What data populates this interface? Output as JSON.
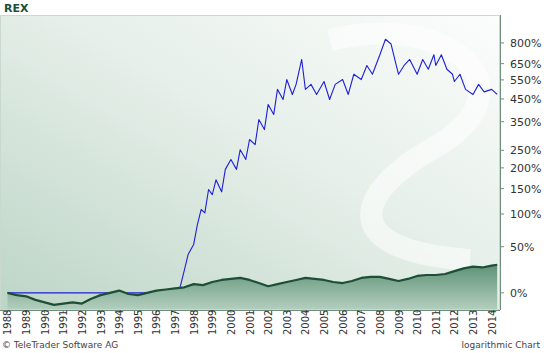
{
  "chart_data": {
    "type": "line",
    "title": "REX",
    "annotations": [
      "© TeleTrader Software AG",
      "logarithmic Chart"
    ],
    "log": "y",
    "grid": false,
    "xlim": [
      1987.6,
      2014.45
    ],
    "xticks": [
      1988,
      1989,
      1990,
      1991,
      1992,
      1993,
      1994,
      1995,
      1996,
      1997,
      1998,
      1999,
      2000,
      2001,
      2002,
      2003,
      2004,
      2005,
      2006,
      2007,
      2008,
      2009,
      2010,
      2011,
      2012,
      2013,
      2014
    ],
    "ylim": [
      -14,
      1050
    ],
    "yticks": [
      {
        "value": 0,
        "label": "0%"
      },
      {
        "value": 50,
        "label": "50%"
      },
      {
        "value": 100,
        "label": "100%"
      },
      {
        "value": 150,
        "label": "150%"
      },
      {
        "value": 200,
        "label": "200%"
      },
      {
        "value": 250,
        "label": "250%"
      },
      {
        "value": 350,
        "label": "350%"
      },
      {
        "value": 450,
        "label": "450%"
      },
      {
        "value": 550,
        "label": "550%"
      },
      {
        "value": 650,
        "label": "650%"
      },
      {
        "value": 800,
        "label": "800%"
      }
    ],
    "series": [
      {
        "type": "line",
        "color": "#1f1fd6",
        "x": [
          1988.0,
          1996.7,
          1996.8,
          1997.0,
          1997.3,
          1997.5,
          1997.7,
          1998.0,
          1998.2,
          1998.4,
          1998.6,
          1998.8,
          1999.0,
          1999.2,
          1999.5,
          1999.7,
          2000.0,
          2000.3,
          2000.5,
          2000.8,
          2001.0,
          2001.3,
          2001.5,
          2001.8,
          2002.0,
          2002.3,
          2002.5,
          2002.8,
          2003.0,
          2003.3,
          2003.5,
          2003.8,
          2004.0,
          2004.3,
          2004.6,
          2005.0,
          2005.3,
          2005.6,
          2006.0,
          2006.3,
          2006.6,
          2007.0,
          2007.3,
          2007.6,
          2008.0,
          2008.3,
          2008.6,
          2008.8,
          2009.0,
          2009.3,
          2009.6,
          2010.0,
          2010.3,
          2010.6,
          2010.9,
          2011.0,
          2011.3,
          2011.6,
          2011.9,
          2012.0,
          2012.3,
          2012.6,
          2013.0,
          2013.3,
          2013.6,
          2014.0,
          2014.3
        ],
        "values": [
          0,
          0,
          -3,
          -6,
          7,
          22,
          40,
          53,
          82,
          108,
          102,
          148,
          137,
          170,
          143,
          196,
          223,
          196,
          252,
          223,
          285,
          268,
          359,
          320,
          424,
          380,
          498,
          447,
          552,
          472,
          525,
          678,
          498,
          525,
          472,
          541,
          447,
          525,
          552,
          472,
          583,
          552,
          638,
          583,
          711,
          829,
          791,
          678,
          583,
          638,
          678,
          583,
          678,
          614,
          711,
          638,
          711,
          614,
          583,
          541,
          583,
          498,
          472,
          525,
          485,
          498,
          472
        ]
      },
      {
        "type": "area",
        "color": "#1c4f36",
        "x": [
          1988.0,
          1988.5,
          1989.0,
          1989.5,
          1990.0,
          1990.5,
          1991.0,
          1991.5,
          1992.0,
          1992.5,
          1993.0,
          1993.5,
          1994.0,
          1994.5,
          1995.0,
          1995.5,
          1996.0,
          1996.5,
          1997.0,
          1997.5,
          1998.0,
          1998.5,
          1999.0,
          1999.5,
          2000.0,
          2000.5,
          2001.0,
          2001.5,
          2002.0,
          2002.5,
          2003.0,
          2003.5,
          2004.0,
          2004.5,
          2005.0,
          2005.5,
          2006.0,
          2006.5,
          2007.0,
          2007.5,
          2008.0,
          2008.5,
          2009.0,
          2009.5,
          2010.0,
          2010.5,
          2011.0,
          2011.5,
          2012.0,
          2012.5,
          2013.0,
          2013.5,
          2014.0,
          2014.3
        ],
        "values": [
          0,
          -2,
          -3,
          -6,
          -8,
          -10,
          -9,
          -8,
          -9,
          -5,
          -2,
          0,
          2,
          -1,
          -2,
          0,
          2,
          3,
          4,
          5,
          8,
          7,
          10,
          12,
          13,
          14,
          12,
          9,
          6,
          8,
          10,
          12,
          14,
          13,
          12,
          10,
          9,
          11,
          14,
          15,
          15,
          13,
          11,
          13,
          16,
          17,
          17,
          18,
          21,
          24,
          26,
          25,
          27,
          28
        ]
      }
    ]
  }
}
